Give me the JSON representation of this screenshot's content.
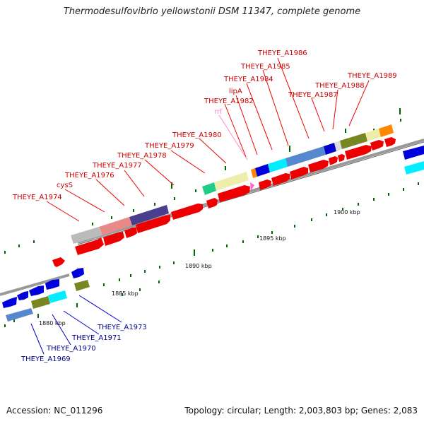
{
  "title": "Thermodesulfovibrio yellowstonii DSM 11347, complete genome",
  "footer": {
    "accession": "Accession: NC_011296",
    "summary": "Topology: circular; Length: 2,003,803 bp; Genes: 2,083"
  },
  "colors": {
    "forward_label": "#cc0000",
    "reverse_label": "#00008b",
    "rrna_label": "#ff88cc",
    "cds": "#ee0000",
    "backbone": "#888888",
    "tick": "#006600"
  },
  "scale_labels": [
    "1880 kbp",
    "1885 kbp",
    "1890 kbp",
    "1895 kbp",
    "1900 kbp"
  ],
  "forward_gene_labels": [
    "THEYE_A1974",
    "cysS",
    "THEYE_A1976",
    "THEYE_A1977",
    "THEYE_A1978",
    "THEYE_A1979",
    "THEYE_A1980",
    "THEYE_A1982",
    "lipA",
    "THEYE_A1984",
    "THEYE_A1985",
    "THEYE_A1986",
    "THEYE_A1987",
    "THEYE_A1988",
    "THEYE_A1989"
  ],
  "rrna_labels": [
    "rrf"
  ],
  "reverse_gene_labels": [
    "THEYE_A1973",
    "THEYE_A1971",
    "THEYE_A1970",
    "THEYE_A1969"
  ]
}
